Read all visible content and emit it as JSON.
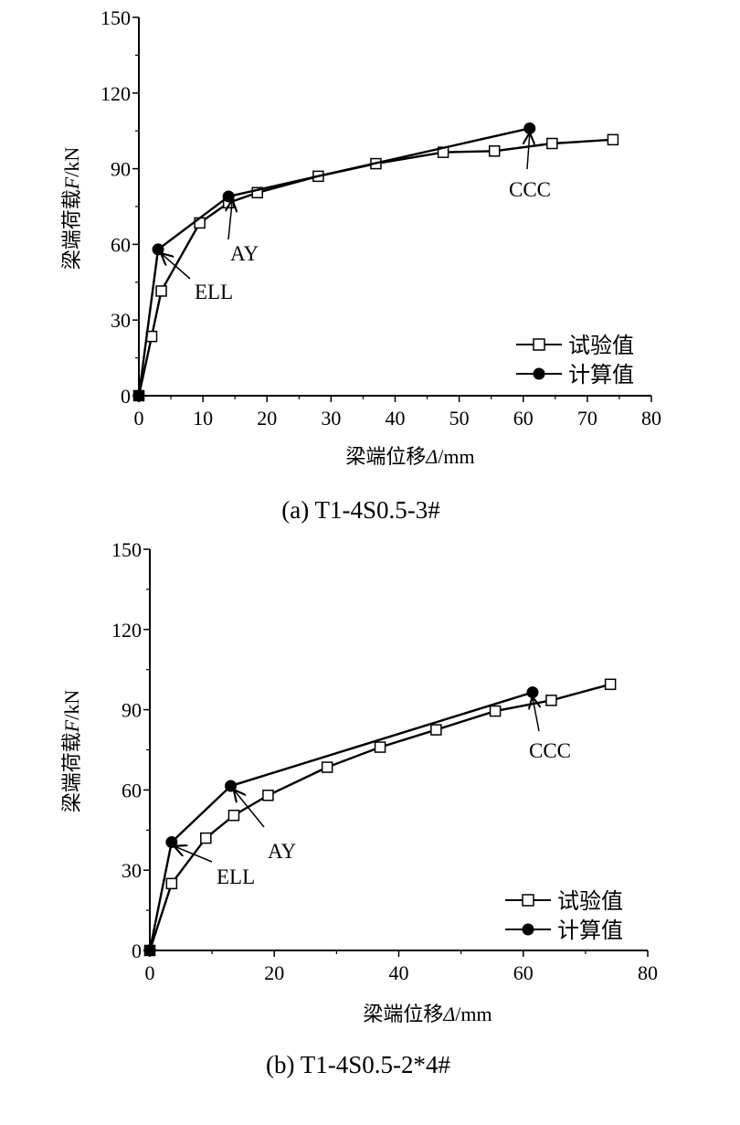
{
  "chart_data": [
    {
      "type": "line",
      "caption": "(a) T1-4S0.5-3#",
      "xlabel_prefix": "梁端位移",
      "xlabel_symbol": "Δ",
      "xlabel_unit": "/mm",
      "ylabel_prefix": "梁端荷载",
      "ylabel_symbol": "F",
      "ylabel_unit": "/kN",
      "xlim": [
        0,
        80
      ],
      "ylim": [
        0,
        150
      ],
      "xticks": [
        0,
        10,
        20,
        30,
        40,
        50,
        60,
        70,
        80
      ],
      "yticks": [
        0,
        30,
        60,
        90,
        120,
        150
      ],
      "legend_position": "bottom-right",
      "series": [
        {
          "name": "试验值",
          "marker": "open-square",
          "x": [
            0,
            2,
            3.5,
            9.5,
            14,
            18.5,
            28,
            37,
            47.5,
            55.5,
            64.5,
            74
          ],
          "y": [
            0,
            23.5,
            41.5,
            68.5,
            76.5,
            80.5,
            87,
            92,
            96.5,
            97,
            100,
            101.5
          ]
        },
        {
          "name": "计算值",
          "marker": "filled-circle",
          "x": [
            0,
            3,
            14,
            61
          ],
          "y": [
            0,
            58,
            79,
            106
          ]
        }
      ],
      "annotations": [
        {
          "text": "ELL",
          "x": 3,
          "y": 58
        },
        {
          "text": "AY",
          "x": 14,
          "y": 79
        },
        {
          "text": "CCC",
          "x": 61,
          "y": 106
        }
      ]
    },
    {
      "type": "line",
      "caption": "(b) T1-4S0.5-2*4#",
      "xlabel_prefix": "梁端位移",
      "xlabel_symbol": "Δ",
      "xlabel_unit": "/mm",
      "ylabel_prefix": "梁端荷载",
      "ylabel_symbol": "F",
      "ylabel_unit": "/kN",
      "xlim": [
        0,
        80
      ],
      "ylim": [
        0,
        150
      ],
      "xticks": [
        0,
        20,
        40,
        60,
        80
      ],
      "yticks": [
        0,
        30,
        60,
        90,
        120,
        150
      ],
      "legend_position": "bottom-right",
      "series": [
        {
          "name": "试验值",
          "marker": "open-square",
          "x": [
            0,
            3.5,
            9,
            13.5,
            19,
            28.5,
            37,
            46,
            55.5,
            64.5,
            74
          ],
          "y": [
            0,
            25,
            42,
            50.5,
            58,
            68.5,
            76,
            82.5,
            89.5,
            93.5,
            99.5
          ]
        },
        {
          "name": "计算值",
          "marker": "filled-circle",
          "x": [
            0,
            3.5,
            13,
            61.5
          ],
          "y": [
            0,
            40.5,
            61.5,
            96.5
          ]
        }
      ],
      "annotations": [
        {
          "text": "ELL",
          "x": 3.5,
          "y": 40.5
        },
        {
          "text": "AY",
          "x": 13,
          "y": 61.5
        },
        {
          "text": "CCC",
          "x": 61.5,
          "y": 96.5
        }
      ]
    }
  ]
}
